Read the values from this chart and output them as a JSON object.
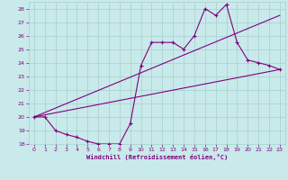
{
  "xlabel": "Windchill (Refroidissement éolien,°C)",
  "bg_color": "#c8eaea",
  "grid_color": "#a8cece",
  "line_color": "#800080",
  "xlim": [
    -0.5,
    23.5
  ],
  "ylim": [
    18,
    28.5
  ],
  "xticks": [
    0,
    1,
    2,
    3,
    4,
    5,
    6,
    7,
    8,
    9,
    10,
    11,
    12,
    13,
    14,
    15,
    16,
    17,
    18,
    19,
    20,
    21,
    22,
    23
  ],
  "yticks": [
    18,
    19,
    20,
    21,
    22,
    23,
    24,
    25,
    26,
    27,
    28
  ],
  "line1_x": [
    0,
    1,
    2,
    3,
    4,
    5,
    6,
    7,
    8,
    9,
    10,
    11,
    12,
    13,
    14,
    15,
    16,
    17,
    18,
    19,
    20,
    21,
    22,
    23
  ],
  "line1_y": [
    20.0,
    20.0,
    19.0,
    18.7,
    18.5,
    18.2,
    18.0,
    18.0,
    18.0,
    19.5,
    23.8,
    25.5,
    25.5,
    25.5,
    25.0,
    26.0,
    28.0,
    27.5,
    28.3,
    25.5,
    24.2,
    24.0,
    23.8,
    23.5
  ],
  "line2_x": [
    0,
    23
  ],
  "line2_y": [
    20.0,
    23.5
  ],
  "line3_x": [
    0,
    23
  ],
  "line3_y": [
    20.0,
    27.5
  ]
}
